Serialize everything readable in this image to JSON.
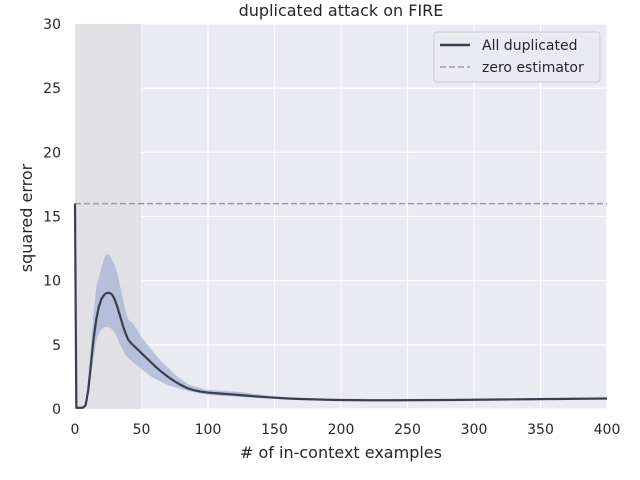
{
  "chart_data": {
    "type": "line",
    "title": "duplicated attack on FIRE",
    "xlabel": "# of in-context examples",
    "ylabel": "squared error",
    "xlim": [
      0,
      400
    ],
    "ylim": [
      0,
      30
    ],
    "xticks": [
      "0",
      "50",
      "100",
      "150",
      "200",
      "250",
      "300",
      "350",
      "400"
    ],
    "yticks": [
      "0",
      "5",
      "10",
      "15",
      "20",
      "25",
      "30"
    ],
    "grid": true,
    "legend_position": "top-right",
    "shaded_region": {
      "x_start": 0,
      "x_end": 50,
      "color": "#dedee3"
    },
    "colors": {
      "background": "#eaeaf2",
      "grid": "#ffffff",
      "line": "#3a3f50",
      "band": "#a7b4d6",
      "zero": "#9e9e9e"
    },
    "series": [
      {
        "name": "All duplicated",
        "style": "solid",
        "x": [
          0,
          1,
          2,
          3,
          4,
          5,
          6,
          8,
          10,
          12,
          14,
          16,
          18,
          20,
          22,
          24,
          26,
          28,
          30,
          32,
          34,
          36,
          38,
          40,
          42,
          44,
          46,
          48,
          50,
          55,
          60,
          65,
          70,
          75,
          80,
          85,
          90,
          95,
          100,
          110,
          120,
          130,
          140,
          150,
          160,
          170,
          180,
          190,
          200,
          220,
          240,
          260,
          280,
          300,
          320,
          340,
          360,
          380,
          400
        ],
        "y": [
          16.0,
          0.1,
          0.1,
          0.1,
          0.1,
          0.1,
          0.1,
          0.3,
          1.5,
          3.5,
          5.5,
          7.0,
          8.0,
          8.6,
          8.9,
          9.05,
          9.05,
          8.9,
          8.5,
          7.9,
          7.2,
          6.5,
          5.9,
          5.4,
          5.15,
          4.95,
          4.75,
          4.55,
          4.35,
          3.85,
          3.35,
          2.9,
          2.5,
          2.15,
          1.85,
          1.6,
          1.45,
          1.35,
          1.28,
          1.2,
          1.12,
          1.03,
          0.95,
          0.88,
          0.82,
          0.78,
          0.75,
          0.72,
          0.7,
          0.68,
          0.68,
          0.69,
          0.7,
          0.72,
          0.74,
          0.76,
          0.78,
          0.8,
          0.82
        ],
        "lower": [
          16.0,
          0.1,
          0.1,
          0.1,
          0.1,
          0.1,
          0.1,
          0.2,
          1.0,
          2.5,
          4.0,
          5.3,
          5.9,
          6.2,
          6.4,
          6.4,
          6.35,
          6.2,
          5.9,
          5.5,
          5.0,
          4.6,
          4.2,
          4.0,
          3.8,
          3.6,
          3.45,
          3.3,
          3.1,
          2.7,
          2.35,
          2.1,
          1.85,
          1.7,
          1.55,
          1.4,
          1.3,
          1.2,
          1.1,
          1.02,
          0.97,
          0.9,
          0.84,
          0.79,
          0.74,
          0.71,
          0.69,
          0.67,
          0.66,
          0.64,
          0.64,
          0.65,
          0.66,
          0.68,
          0.7,
          0.72,
          0.74,
          0.76,
          0.78
        ],
        "upper": [
          16.0,
          0.1,
          0.1,
          0.1,
          0.1,
          0.1,
          0.1,
          0.5,
          2.5,
          5.0,
          7.5,
          9.5,
          10.3,
          11.0,
          11.8,
          12.1,
          12.0,
          11.6,
          11.2,
          10.5,
          9.5,
          8.6,
          7.6,
          7.0,
          6.8,
          6.6,
          6.3,
          5.9,
          5.6,
          4.95,
          4.3,
          3.7,
          3.2,
          2.7,
          2.3,
          1.95,
          1.75,
          1.6,
          1.5,
          1.42,
          1.36,
          1.25,
          1.12,
          1.0,
          0.92,
          0.87,
          0.82,
          0.78,
          0.75,
          0.73,
          0.72,
          0.73,
          0.74,
          0.76,
          0.78,
          0.8,
          0.82,
          0.84,
          0.86
        ]
      },
      {
        "name": "zero estimator",
        "style": "dashed",
        "x": [
          0,
          400
        ],
        "y": [
          16,
          16
        ]
      }
    ]
  }
}
